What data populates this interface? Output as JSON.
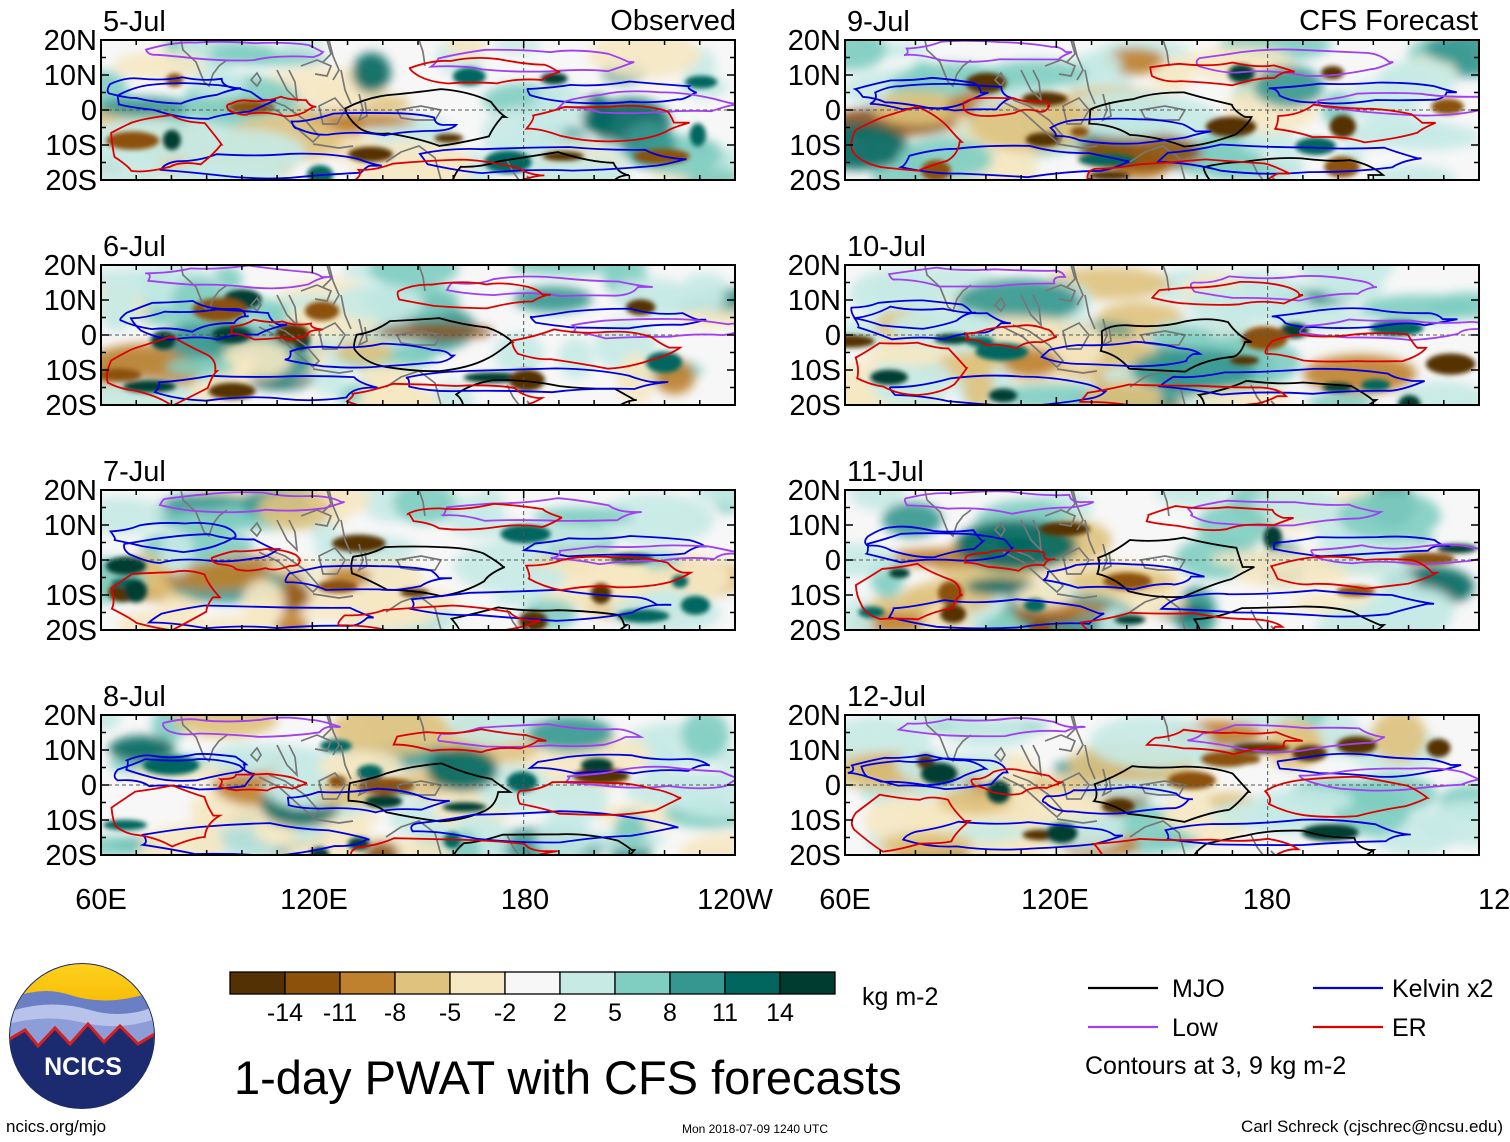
{
  "header": {
    "observed_label": "Observed",
    "forecast_label": "CFS Forecast"
  },
  "axes": {
    "lat_labels": [
      "20N",
      "10N",
      "0",
      "10S",
      "20S"
    ],
    "lon_labels": [
      "60E",
      "120E",
      "180",
      "120W"
    ]
  },
  "panels": [
    {
      "id": "jul5",
      "date": "5-Jul",
      "column": "observed"
    },
    {
      "id": "jul6",
      "date": "6-Jul",
      "column": "observed"
    },
    {
      "id": "jul7",
      "date": "7-Jul",
      "column": "observed"
    },
    {
      "id": "jul8",
      "date": "8-Jul",
      "column": "observed"
    },
    {
      "id": "jul9",
      "date": "9-Jul",
      "column": "forecast"
    },
    {
      "id": "jul10",
      "date": "10-Jul",
      "column": "forecast"
    },
    {
      "id": "jul11",
      "date": "11-Jul",
      "column": "forecast"
    },
    {
      "id": "jul12",
      "date": "12-Jul",
      "column": "forecast"
    }
  ],
  "colorbar": {
    "colors": [
      "#543005",
      "#8c510a",
      "#bf812d",
      "#dfc27d",
      "#f6e8c3",
      "#f7f7f7",
      "#c7eae5",
      "#80cdc1",
      "#35978f",
      "#01665e",
      "#003c30"
    ],
    "tick_labels": [
      "-14",
      "-11",
      "-8",
      "-5",
      "-2",
      "2",
      "5",
      "8",
      "11",
      "14"
    ],
    "units": "kg m-2"
  },
  "legend": {
    "items": [
      {
        "label": "MJO",
        "color": "#000000"
      },
      {
        "label": "Kelvin x2",
        "color": "#0000dd"
      },
      {
        "label": "Low",
        "color": "#a040f0"
      },
      {
        "label": "ER",
        "color": "#dd0000"
      }
    ],
    "note": "Contours at 3, 9 kg m-2"
  },
  "footer": {
    "title": "1-day PWAT with CFS forecasts",
    "logo_text": "NCICS",
    "url": "ncics.org/mjo",
    "timestamp": "Mon 2018-07-09 1240 UTC",
    "credit": "Carl Schreck (cjschrec@ncsu.edu)"
  }
}
